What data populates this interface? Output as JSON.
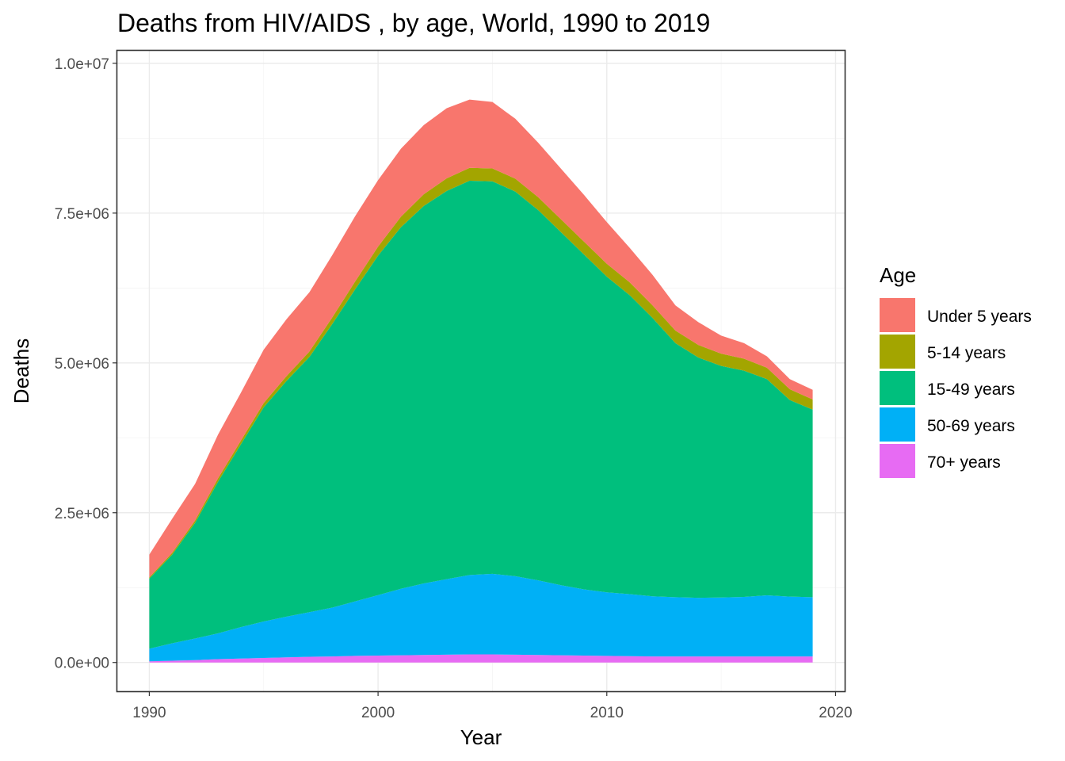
{
  "chart_data": {
    "type": "area",
    "stacked": true,
    "title": "Deaths from HIV/AIDS , by age, World, 1990 to 2019",
    "xlabel": "Year",
    "ylabel": "Deaths",
    "xlim": [
      1988.6,
      2020.4
    ],
    "ylim": [
      -480000,
      10210000
    ],
    "x_ticks": [
      1990,
      2000,
      2010,
      2020
    ],
    "x_tick_labels": [
      "1990",
      "2000",
      "2010",
      "2020"
    ],
    "y_ticks": [
      0,
      2500000,
      5000000,
      7500000,
      10000000
    ],
    "y_tick_labels": [
      "0.0e+00",
      "2.5e+06",
      "5.0e+06",
      "7.5e+06",
      "1.0e+07"
    ],
    "grid": true,
    "legend": {
      "title": "Age",
      "position": "right"
    },
    "x": [
      1990,
      1991,
      1992,
      1993,
      1994,
      1995,
      1996,
      1997,
      1998,
      1999,
      2000,
      2001,
      2002,
      2003,
      2004,
      2005,
      2006,
      2007,
      2008,
      2009,
      2010,
      2011,
      2012,
      2013,
      2014,
      2015,
      2016,
      2017,
      2018,
      2019
    ],
    "series": [
      {
        "name": "70+ years",
        "color": "#E76BF3",
        "values": [
          20000,
          30000,
          40000,
          55000,
          65000,
          75000,
          85000,
          95000,
          100000,
          110000,
          115000,
          120000,
          125000,
          130000,
          135000,
          135000,
          130000,
          125000,
          120000,
          115000,
          110000,
          105000,
          100000,
          100000,
          100000,
          100000,
          100000,
          100000,
          100000,
          100000
        ]
      },
      {
        "name": "50-69 years",
        "color": "#00B0F6",
        "values": [
          210000,
          290000,
          360000,
          430000,
          525000,
          610000,
          680000,
          745000,
          815000,
          910000,
          1010000,
          1110000,
          1195000,
          1260000,
          1325000,
          1345000,
          1310000,
          1245000,
          1170000,
          1105000,
          1060000,
          1035000,
          1005000,
          990000,
          980000,
          985000,
          995000,
          1020000,
          1000000,
          990000
        ]
      },
      {
        "name": "15-49 years",
        "color": "#00BF7D",
        "values": [
          1170000,
          1480000,
          1930000,
          2530000,
          3050000,
          3575000,
          3935000,
          4260000,
          4735000,
          5210000,
          5665000,
          6035000,
          6300000,
          6480000,
          6580000,
          6550000,
          6420000,
          6180000,
          5890000,
          5590000,
          5270000,
          4990000,
          4645000,
          4240000,
          4010000,
          3865000,
          3775000,
          3610000,
          3280000,
          3130000
        ]
      },
      {
        "name": "5-14 years",
        "color": "#A3A500",
        "values": [
          20000,
          30000,
          40000,
          55000,
          60000,
          70000,
          80000,
          90000,
          110000,
          130000,
          150000,
          175000,
          195000,
          210000,
          215000,
          215000,
          215000,
          215000,
          215000,
          215000,
          215000,
          215000,
          210000,
          210000,
          210000,
          205000,
          200000,
          190000,
          180000,
          170000
        ]
      },
      {
        "name": "Under 5 years",
        "color": "#F8766D",
        "values": [
          380000,
          570000,
          610000,
          730000,
          800000,
          890000,
          950000,
          990000,
          1040000,
          1090000,
          1110000,
          1135000,
          1155000,
          1170000,
          1140000,
          1110000,
          1000000,
          910000,
          845000,
          780000,
          695000,
          575000,
          510000,
          420000,
          380000,
          300000,
          260000,
          190000,
          170000,
          160000
        ]
      }
    ]
  }
}
